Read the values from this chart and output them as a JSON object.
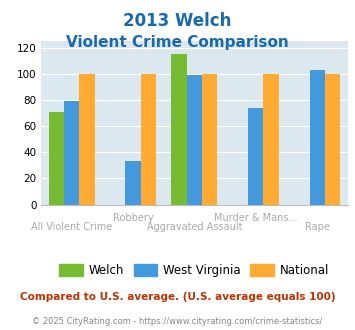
{
  "title_line1": "2013 Welch",
  "title_line2": "Violent Crime Comparison",
  "title_color": "#1a6aab",
  "series": [
    "Welch",
    "West Virginia",
    "National"
  ],
  "colors": [
    "#77bb33",
    "#4499dd",
    "#ffaa33"
  ],
  "values": [
    [
      71,
      0,
      115,
      0,
      0
    ],
    [
      79,
      33,
      99,
      74,
      103
    ],
    [
      100,
      100,
      100,
      100,
      100
    ]
  ],
  "top_labels": [
    "",
    "Robbery",
    "",
    "Murder & Mans...",
    ""
  ],
  "bottom_labels": [
    "All Violent Crime",
    "",
    "Aggravated Assault",
    "",
    "Rape"
  ],
  "ylim": [
    0,
    125
  ],
  "yticks": [
    0,
    20,
    40,
    60,
    80,
    100,
    120
  ],
  "bar_width": 0.25,
  "bg_color": "#dce8f0",
  "footnote": "Compared to U.S. average. (U.S. average equals 100)",
  "footnote_color": "#bb3300",
  "copyright": "© 2025 CityRating.com - https://www.cityrating.com/crime-statistics/",
  "copyright_color": "#888888",
  "label_color": "#aaaaaa"
}
